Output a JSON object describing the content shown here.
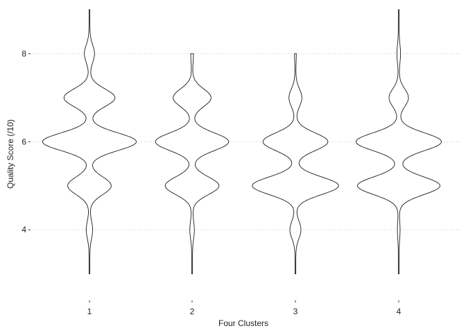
{
  "chart_data": {
    "type": "violin",
    "title": "",
    "xlabel": "Four Clusters",
    "ylabel": "Quality Score (/10)",
    "categories": [
      "1",
      "2",
      "3",
      "4"
    ],
    "ylim": [
      2.6,
      9.0
    ],
    "yticks": [
      4,
      6,
      8
    ],
    "grid": "horizontal dotted at y ticks",
    "legend": "none",
    "series": [
      {
        "category": "1",
        "y_min": 3,
        "y_max": 9,
        "density_peaks": [
          {
            "y": 4,
            "rel_width": 0.06
          },
          {
            "y": 5,
            "rel_width": 0.46
          },
          {
            "y": 6,
            "rel_width": 1.0
          },
          {
            "y": 7,
            "rel_width": 0.54
          },
          {
            "y": 8,
            "rel_width": 0.1
          }
        ]
      },
      {
        "category": "2",
        "y_min": 3,
        "y_max": 8,
        "density_peaks": [
          {
            "y": 4,
            "rel_width": 0.04
          },
          {
            "y": 5,
            "rel_width": 0.57
          },
          {
            "y": 6,
            "rel_width": 0.78
          },
          {
            "y": 7,
            "rel_width": 0.4
          },
          {
            "y": 8,
            "rel_width": 0.02
          }
        ]
      },
      {
        "category": "3",
        "y_min": 3,
        "y_max": 8,
        "density_peaks": [
          {
            "y": 4,
            "rel_width": 0.11
          },
          {
            "y": 5,
            "rel_width": 0.92
          },
          {
            "y": 6,
            "rel_width": 0.69
          },
          {
            "y": 7,
            "rel_width": 0.13
          },
          {
            "y": 8,
            "rel_width": 0.01
          }
        ]
      },
      {
        "category": "4",
        "y_min": 3,
        "y_max": 9,
        "density_peaks": [
          {
            "y": 4,
            "rel_width": 0.02
          },
          {
            "y": 5,
            "rel_width": 0.88
          },
          {
            "y": 6,
            "rel_width": 0.91
          },
          {
            "y": 7,
            "rel_width": 0.2
          },
          {
            "y": 8,
            "rel_width": 0.03
          }
        ]
      }
    ]
  }
}
